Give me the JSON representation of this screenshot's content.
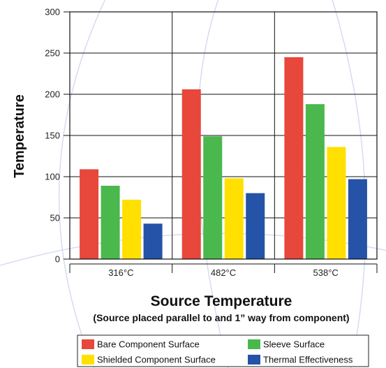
{
  "chart_data": {
    "type": "bar",
    "categories": [
      "316°C",
      "482°C",
      "538°C"
    ],
    "series": [
      {
        "name": "Bare Component Surface",
        "color": "#e8473b",
        "values": [
          109,
          206,
          245
        ]
      },
      {
        "name": "Sleeve Surface",
        "color": "#4bb84e",
        "values": [
          89,
          149,
          188
        ]
      },
      {
        "name": "Shielded Component Surface",
        "color": "#ffe000",
        "values": [
          72,
          98,
          136
        ]
      },
      {
        "name": "Thermal Effectiveness",
        "color": "#2453a8",
        "values": [
          43,
          80,
          97
        ]
      }
    ],
    "yticks": [
      0,
      50,
      100,
      150,
      200,
      250,
      300
    ],
    "ylim": [
      0,
      300
    ],
    "ylabel": "Temperature",
    "xlabel": "Source Temperature",
    "subtitle": "(Source placed parallel to and 1” way from component)",
    "grid": true,
    "legend_position": "bottom"
  },
  "decor_color": "#d6dcf0"
}
